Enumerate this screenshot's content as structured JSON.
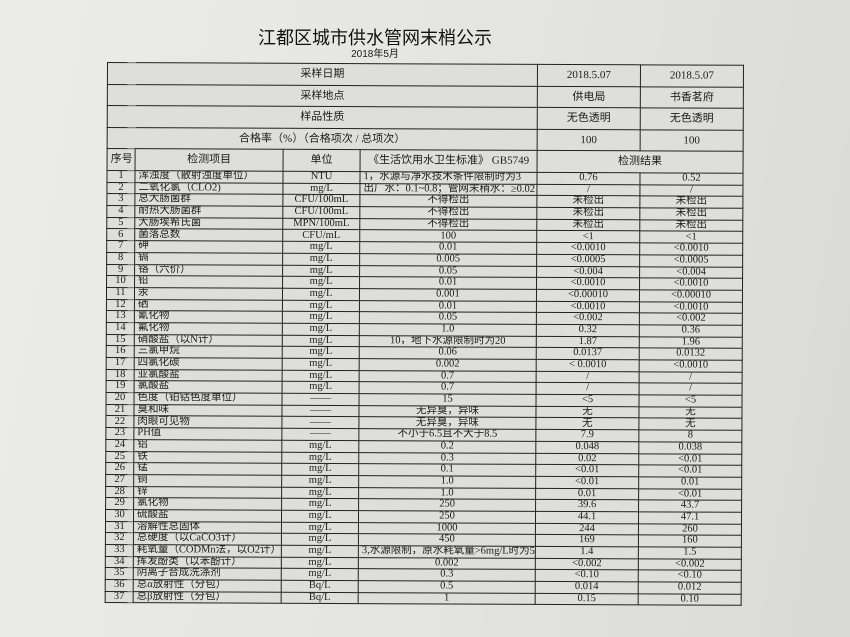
{
  "header": {
    "title": "江都区城市供水管网末梢公示",
    "subtitle": "2018年5月"
  },
  "summary": [
    {
      "label": "采样日期",
      "values": [
        "2018.5.07",
        "2018.5.07"
      ]
    },
    {
      "label": "采样地点",
      "values": [
        "供电局",
        "书香茗府"
      ]
    },
    {
      "label": "样品性质",
      "values": [
        "无色透明",
        "无色透明"
      ]
    },
    {
      "label": "合格率（%）（合格项次 / 总项次）",
      "values": [
        "100",
        "100"
      ]
    }
  ],
  "columns": {
    "no": "序号",
    "item": "检测项目",
    "unit": "单位",
    "standard": "《生活饮用水卫生标准》 GB5749",
    "result": "检测结果"
  },
  "rows": [
    [
      "1",
      "浑浊度（散射浊度单位）",
      "NTU",
      "1，水源与净水技术条件限制时为3",
      "0.76",
      "0.52"
    ],
    [
      "2",
      "二氧化氯（CLO2)",
      "mg/L",
      "出厂水：0.1~0.8；管网末稍水：≥0.02",
      "/",
      "/"
    ],
    [
      "3",
      "总大肠菌群",
      "CFU/100mL",
      "不得检出",
      "未检出",
      "未检出"
    ],
    [
      "4",
      "耐热大肠菌群",
      "CFU/100mL",
      "不得检出",
      "未检出",
      "未检出"
    ],
    [
      "5",
      "大肠埃希氏菌",
      "MPN/100mL",
      "不得检出",
      "未检出",
      "未检出"
    ],
    [
      "6",
      "菌落总数",
      "CFU/mL",
      "100",
      "<1",
      "<1"
    ],
    [
      "7",
      "砷",
      "mg/L",
      "0.01",
      "<0.0010",
      "<0.0010"
    ],
    [
      "8",
      "镉",
      "mg/L",
      "0.005",
      "<0.0005",
      "<0.0005"
    ],
    [
      "9",
      "铬（六价）",
      "mg/L",
      "0.05",
      "<0.004",
      "<0.004"
    ],
    [
      "10",
      "铅",
      "mg/L",
      "0.01",
      "<0.0010",
      "<0.0010"
    ],
    [
      "11",
      "汞",
      "mg/L",
      "0.001",
      "<0.00010",
      "<0.00010"
    ],
    [
      "12",
      "硒",
      "mg/L",
      "0.01",
      "<0.0010",
      "<0.0010"
    ],
    [
      "13",
      "氰化物",
      "mg/L",
      "0.05",
      "<0.002",
      "<0.002"
    ],
    [
      "14",
      "氟化物",
      "mg/L",
      "1.0",
      "0.32",
      "0.36"
    ],
    [
      "15",
      "硝酸盐（以N计）",
      "mg/L",
      "10，地下水源限制时为20",
      "1.87",
      "1.96"
    ],
    [
      "16",
      "三氯甲烷",
      "mg/L",
      "0.06",
      "0.0137",
      "0.0132"
    ],
    [
      "17",
      "四氯化碳",
      "mg/L",
      "0.002",
      "< 0.0010",
      "<0.0010"
    ],
    [
      "18",
      "亚氯酸盐",
      "mg/L",
      "0.7",
      "/",
      "/"
    ],
    [
      "19",
      "氯酸盐",
      "mg/L",
      "0.7",
      "/",
      "/"
    ],
    [
      "20",
      "色度（铂钴色度单位）",
      "——",
      "15",
      "<5",
      "<5"
    ],
    [
      "21",
      "臭和味",
      "——",
      "无异臭，异味",
      "无",
      "无"
    ],
    [
      "22",
      "肉眼可见物",
      "——",
      "无异臭，异味",
      "无",
      "无"
    ],
    [
      "23",
      "PH值",
      "——",
      "不小于6.5且不大于8.5",
      "7.9",
      "8"
    ],
    [
      "24",
      "铝",
      "mg/L",
      "0.2",
      "0.048",
      "0.038"
    ],
    [
      "25",
      "铁",
      "mg/L",
      "0.3",
      "0.02",
      "<0.01"
    ],
    [
      "26",
      "锰",
      "mg/L",
      "0.1",
      "<0.01",
      "<0.01"
    ],
    [
      "27",
      "铜",
      "mg/L",
      "1.0",
      "<0.01",
      "0.01"
    ],
    [
      "28",
      "锌",
      "mg/L",
      "1.0",
      "0.01",
      "<0.01"
    ],
    [
      "29",
      "氯化物",
      "mg/L",
      "250",
      "39.6",
      "43.7"
    ],
    [
      "30",
      "硫酸盐",
      "mg/L",
      "250",
      "44.1",
      "47.1"
    ],
    [
      "31",
      "溶解性总固体",
      "mg/L",
      "1000",
      "244",
      "260"
    ],
    [
      "32",
      "总硬度（以CaCO3计）",
      "mg/L",
      "450",
      "169",
      "160"
    ],
    [
      "33",
      "耗氧量（CODMn法，以O2计）",
      "mg/L",
      "3,水源限制，原水耗氧量>6mg/L时为5",
      "1.4",
      "1.5"
    ],
    [
      "34",
      "挥发酚类（以苯酚计）",
      "mg/L",
      "0.002",
      "<0.002",
      "<0.002"
    ],
    [
      "35",
      "阴离子合成洗涤剂",
      "mg/L",
      "0.3",
      "<0.10",
      "<0.10"
    ],
    [
      "36",
      "总α放射性（分包）",
      "Bq/L",
      "0.5",
      "0.014",
      "0.012"
    ],
    [
      "37",
      "总β放射性（分包）",
      "Bq/L",
      "1",
      "0.15",
      "0.10"
    ]
  ]
}
